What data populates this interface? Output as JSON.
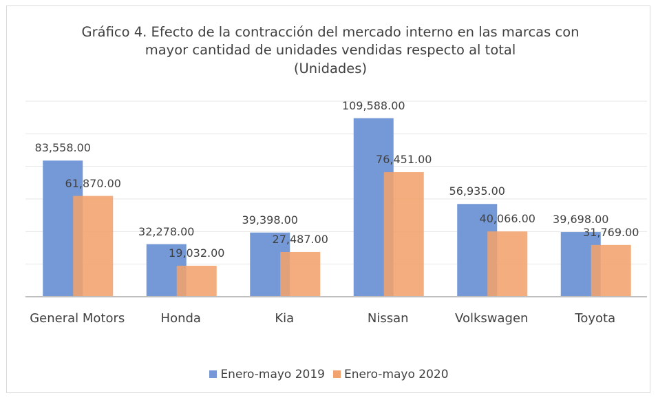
{
  "chart_data": {
    "type": "bar",
    "title": "Gráfico 4. Efecto de la contracción del mercado interno en las marcas con mayor cantidad de unidades vendidas respecto al total",
    "subtitle": "(Unidades)",
    "categories": [
      "General Motors",
      "Honda",
      "Kia",
      "Nissan",
      "Volkswagen",
      "Toyota"
    ],
    "series": [
      {
        "name": "Enero-mayo 2019",
        "color": "#7499d6",
        "values": [
          83558,
          32278,
          39398,
          109588,
          56935,
          39698
        ],
        "value_labels": [
          "83,558.00",
          "32,278.00",
          "39,398.00",
          "109,588.00",
          "56,935.00",
          "39,698.00"
        ]
      },
      {
        "name": "Enero-mayo 2020",
        "color": "#f2a26c",
        "values": [
          61870,
          19032,
          27487,
          76451,
          40066,
          31769
        ],
        "value_labels": [
          "61,870.00",
          "19,032.00",
          "27,487.00",
          "76,451.00",
          "40,066.00",
          "31,769.00"
        ]
      }
    ],
    "ylim": [
      0,
      120000
    ],
    "yticks": [
      0,
      20000,
      40000,
      60000,
      80000,
      100000,
      120000
    ],
    "grid": true,
    "legend": "bottom"
  }
}
